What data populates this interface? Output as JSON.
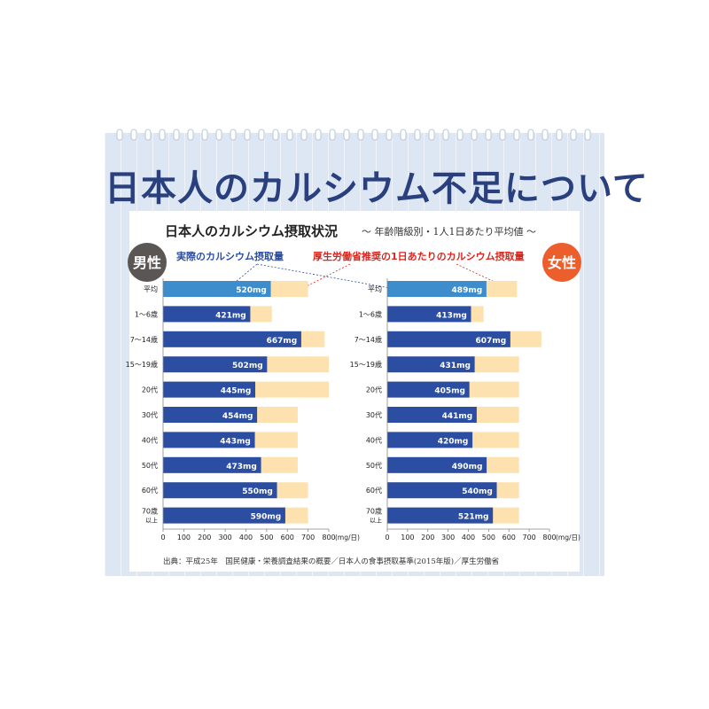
{
  "main_title": "日本人のカルシウム不足について",
  "chart_title": "日本人のカルシウム摂取状況",
  "chart_subtitle": "〜 年齢階級別・1人1日あたり平均値 〜",
  "legend": {
    "actual": "実際のカルシウム摂取量",
    "recommended": "厚生労働省推奨の1日あたりのカルシウム摂取量"
  },
  "unit_label": "(mg/日)",
  "source": "出典：平成25年　国民健康・栄養調査結果の概要／日本人の食事摂取基準(2015年版)／厚生労働省",
  "colors": {
    "actual": "#2b4ea2",
    "actual_avg": "#3d8ccb",
    "recommended": "#fde2b0",
    "male_badge": "#5a5654",
    "female_badge": "#ec5f2c",
    "legend_actual_text": "#2b4ea2",
    "legend_recommended_text": "#d7261e"
  },
  "chart_data": {
    "type": "bar",
    "orientation": "horizontal",
    "stacked_overlay": true,
    "title": "日本人のカルシウム摂取状況",
    "subtitle": "〜 年齢階級別・1人1日あたり平均値 〜",
    "xlim": [
      0,
      800
    ],
    "xticks": [
      0,
      100,
      200,
      300,
      400,
      500,
      600,
      700,
      800
    ],
    "xunit": "(mg/日)",
    "categories": [
      "平均",
      "1〜6歳",
      "7〜14歳",
      "15〜19歳",
      "20代",
      "30代",
      "40代",
      "50代",
      "60代",
      "70歳以上"
    ],
    "panels": [
      {
        "name": "男性",
        "series": [
          {
            "name": "実際のカルシウム摂取量",
            "values": [
              520,
              421,
              667,
              502,
              445,
              454,
              443,
              473,
              550,
              590
            ]
          },
          {
            "name": "厚生労働省推奨の1日あたりのカルシウム摂取量",
            "values": [
              700,
              525,
              780,
              800,
              800,
              650,
              650,
              650,
              700,
              700
            ]
          }
        ],
        "value_labels": [
          "520mg",
          "421mg",
          "667mg",
          "502mg",
          "445mg",
          "454mg",
          "443mg",
          "473mg",
          "550mg",
          "590mg"
        ]
      },
      {
        "name": "女性",
        "series": [
          {
            "name": "実際のカルシウム摂取量",
            "values": [
              489,
              413,
              607,
              431,
              405,
              441,
              420,
              490,
              540,
              521
            ]
          },
          {
            "name": "厚生労働省推奨の1日あたりのカルシウム摂取量",
            "values": [
              640,
              475,
              760,
              650,
              650,
              650,
              650,
              650,
              650,
              650
            ]
          }
        ],
        "value_labels": [
          "489mg",
          "413mg",
          "607mg",
          "431mg",
          "405mg",
          "441mg",
          "420mg",
          "490mg",
          "540mg",
          "521mg"
        ]
      }
    ]
  }
}
